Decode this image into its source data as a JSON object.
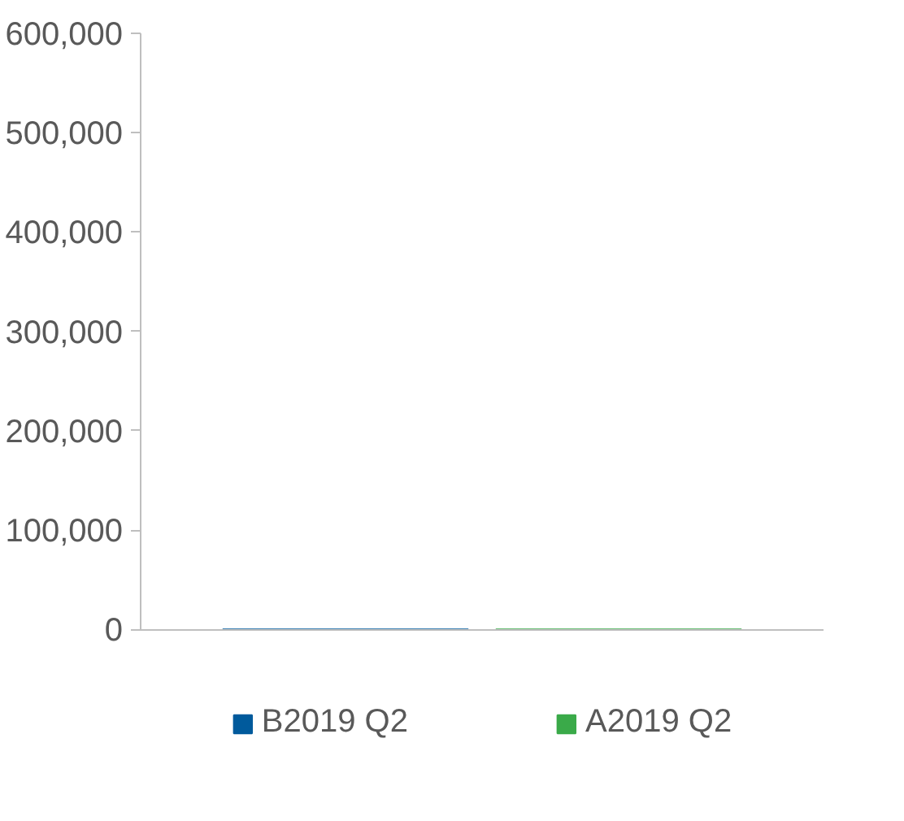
{
  "chart_data": {
    "type": "bar",
    "categories": [
      null
    ],
    "series": [
      {
        "name": "B2019 Q2",
        "color": "#005a9c",
        "values": [
          0
        ]
      },
      {
        "name": "A2019 Q2",
        "color": "#3aaa49",
        "values": [
          0
        ]
      }
    ],
    "ylim": [
      0,
      600000
    ],
    "yticks": [
      {
        "value": 0,
        "label": "0"
      },
      {
        "value": 100000,
        "label": "100,000"
      },
      {
        "value": 200000,
        "label": "200,000"
      },
      {
        "value": 300000,
        "label": "300,000"
      },
      {
        "value": 400000,
        "label": "400,000"
      },
      {
        "value": 500000,
        "label": "500,000"
      },
      {
        "value": 600000,
        "label": "600,000"
      }
    ],
    "grid": false,
    "legend": "bottom"
  }
}
